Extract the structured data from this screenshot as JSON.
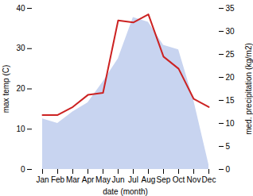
{
  "chart_data": {
    "type": "line",
    "categories": [
      "Jan",
      "Feb",
      "Mar",
      "Apr",
      "May",
      "Jun",
      "Jul",
      "Aug",
      "Sep",
      "Oct",
      "Nov",
      "Dec"
    ],
    "xlabel": "date (month)",
    "ylabel": "max temp (C)",
    "y2label": "med. precipitation (kg/m2)",
    "ylim": [
      0,
      40
    ],
    "yticks": [
      0,
      10,
      20,
      30,
      40
    ],
    "y2lim": [
      0,
      35
    ],
    "y2ticks": [
      0,
      5,
      10,
      15,
      20,
      25,
      30,
      35
    ],
    "series": [
      {
        "type": "area",
        "axis": "y2",
        "color": "#c8d4f0",
        "values": [
          11.0,
          10.0,
          12.5,
          14.5,
          19.0,
          24.0,
          33.0,
          32.0,
          27.0,
          26.0,
          15.0,
          1.0
        ]
      },
      {
        "type": "line",
        "color": "#cc2222",
        "values": [
          13.5,
          13.5,
          15.5,
          18.5,
          19.0,
          37.0,
          36.5,
          38.5,
          28.0,
          25.0,
          17.5,
          15.5
        ]
      }
    ]
  }
}
